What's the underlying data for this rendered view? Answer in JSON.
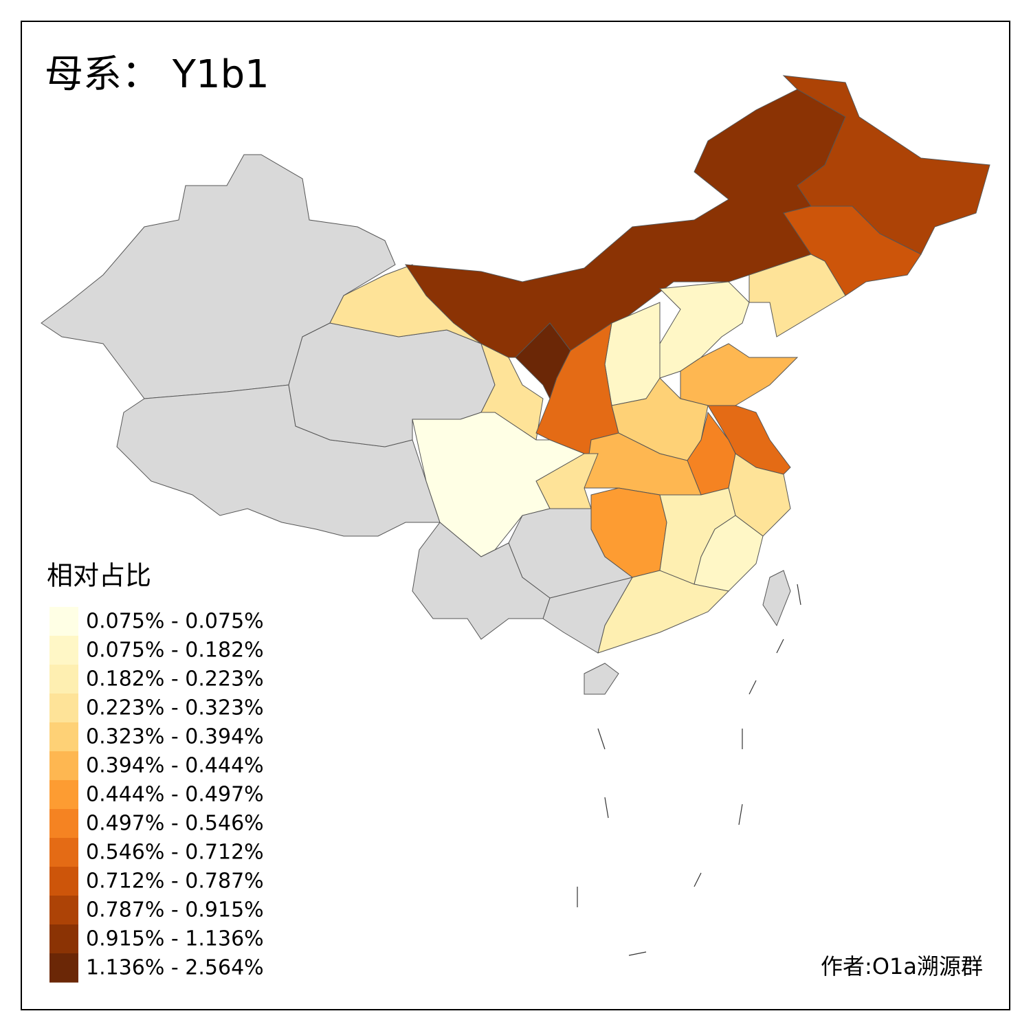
{
  "title": "母系： Y1b1",
  "legend": {
    "title": "相对占比",
    "items": [
      {
        "label": "0.075% - 0.075%",
        "color": "#ffffe5"
      },
      {
        "label": "0.075% - 0.182%",
        "color": "#fff7c6"
      },
      {
        "label": "0.182% - 0.223%",
        "color": "#feefb1"
      },
      {
        "label": "0.223% - 0.323%",
        "color": "#fee398"
      },
      {
        "label": "0.323% - 0.394%",
        "color": "#fed176"
      },
      {
        "label": "0.394% - 0.444%",
        "color": "#feb751"
      },
      {
        "label": "0.444% - 0.497%",
        "color": "#fd9c32"
      },
      {
        "label": "0.497% - 0.546%",
        "color": "#f58322"
      },
      {
        "label": "0.546% - 0.712%",
        "color": "#e46b15"
      },
      {
        "label": "0.712% - 0.787%",
        "color": "#cd550a"
      },
      {
        "label": "0.787% - 0.915%",
        "color": "#ad4306"
      },
      {
        "label": "0.915% - 1.136%",
        "color": "#8b3304"
      },
      {
        "label": "1.136% - 2.564%",
        "color": "#6b2706"
      }
    ]
  },
  "author": "作者:O1a溯源群"
}
